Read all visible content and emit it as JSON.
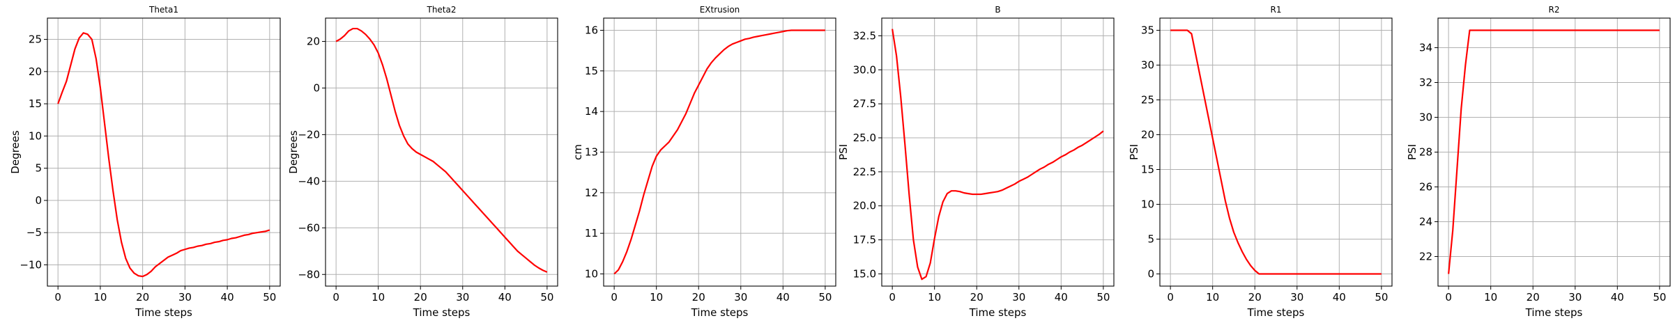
{
  "chart_data": [
    {
      "type": "line",
      "title": "Theta1",
      "xlabel": "Time steps",
      "ylabel": "Degrees",
      "xlim": [
        -2.5,
        52.5
      ],
      "ylim": [
        -13.3,
        28.3
      ],
      "xticks": [
        0,
        10,
        20,
        30,
        40,
        50
      ],
      "yticks": [
        -10,
        -5,
        0,
        5,
        10,
        15,
        20,
        25
      ],
      "grid": true,
      "line_color": "#ff0000",
      "series": [
        {
          "x": [
            0,
            1,
            2,
            3,
            4,
            5,
            6,
            7,
            8,
            9,
            10,
            11,
            12,
            13,
            14,
            15,
            16,
            17,
            18,
            19,
            20,
            21,
            22,
            23,
            24,
            25,
            26,
            27,
            28,
            29,
            30,
            31,
            32,
            33,
            34,
            35,
            36,
            37,
            38,
            39,
            40,
            41,
            42,
            43,
            44,
            45,
            46,
            47,
            48,
            49,
            50
          ],
          "values": [
            15,
            16.8,
            18.5,
            21,
            23.5,
            25.2,
            26,
            25.8,
            25,
            22,
            17.5,
            12,
            6.5,
            1.5,
            -3,
            -6.5,
            -9,
            -10.5,
            -11.3,
            -11.7,
            -11.8,
            -11.5,
            -11,
            -10.3,
            -9.8,
            -9.3,
            -8.8,
            -8.5,
            -8.2,
            -7.8,
            -7.6,
            -7.4,
            -7.3,
            -7.1,
            -7,
            -6.8,
            -6.7,
            -6.5,
            -6.4,
            -6.2,
            -6.1,
            -5.9,
            -5.8,
            -5.6,
            -5.4,
            -5.3,
            -5.1,
            -5,
            -4.9,
            -4.8,
            -4.6
          ]
        }
      ]
    },
    {
      "type": "line",
      "title": "Theta2",
      "xlabel": "Time steps",
      "ylabel": "Degrees",
      "xlim": [
        -2.5,
        52.5
      ],
      "ylim": [
        -85,
        30
      ],
      "xticks": [
        0,
        10,
        20,
        30,
        40,
        50
      ],
      "yticks": [
        -80,
        -60,
        -40,
        -20,
        0,
        20
      ],
      "grid": true,
      "line_color": "#ff0000",
      "series": [
        {
          "x": [
            0,
            1,
            2,
            3,
            4,
            5,
            6,
            7,
            8,
            9,
            10,
            11,
            12,
            13,
            14,
            15,
            16,
            17,
            18,
            19,
            20,
            21,
            22,
            23,
            24,
            25,
            26,
            27,
            28,
            29,
            30,
            31,
            32,
            33,
            34,
            35,
            36,
            37,
            38,
            39,
            40,
            41,
            42,
            43,
            44,
            45,
            46,
            47,
            48,
            49,
            50
          ],
          "values": [
            20,
            21,
            22.5,
            24.5,
            25.5,
            25.5,
            24.5,
            23,
            21,
            18.5,
            15,
            10,
            4,
            -3,
            -10,
            -16,
            -20.5,
            -24,
            -26,
            -27.5,
            -28.5,
            -29.5,
            -30.5,
            -31.5,
            -33,
            -34.5,
            -36,
            -38,
            -40,
            -42,
            -44,
            -46,
            -48,
            -50,
            -52,
            -54,
            -56,
            -58,
            -60,
            -62,
            -64,
            -66,
            -68,
            -70,
            -71.5,
            -73,
            -74.5,
            -76,
            -77.2,
            -78.2,
            -79
          ]
        }
      ]
    },
    {
      "type": "line",
      "title": "EXtrusion",
      "xlabel": "Time steps",
      "ylabel": "cm",
      "xlim": [
        -2.5,
        52.5
      ],
      "ylim": [
        9.7,
        16.3
      ],
      "xticks": [
        0,
        10,
        20,
        30,
        40,
        50
      ],
      "yticks": [
        10,
        11,
        12,
        13,
        14,
        15,
        16
      ],
      "grid": true,
      "line_color": "#ff0000",
      "series": [
        {
          "x": [
            0,
            1,
            2,
            3,
            4,
            5,
            6,
            7,
            8,
            9,
            10,
            11,
            12,
            13,
            14,
            15,
            16,
            17,
            18,
            19,
            20,
            21,
            22,
            23,
            24,
            25,
            26,
            27,
            28,
            29,
            30,
            31,
            32,
            33,
            34,
            35,
            36,
            37,
            38,
            39,
            40,
            41,
            42,
            43,
            44,
            45,
            46,
            47,
            48,
            49,
            50
          ],
          "values": [
            10,
            10.1,
            10.3,
            10.55,
            10.85,
            11.2,
            11.55,
            11.95,
            12.3,
            12.65,
            12.9,
            13.05,
            13.15,
            13.25,
            13.4,
            13.55,
            13.75,
            13.95,
            14.2,
            14.45,
            14.65,
            14.85,
            15.05,
            15.2,
            15.32,
            15.42,
            15.52,
            15.6,
            15.66,
            15.7,
            15.74,
            15.78,
            15.8,
            15.83,
            15.85,
            15.87,
            15.89,
            15.91,
            15.93,
            15.95,
            15.97,
            15.99,
            16,
            16,
            16,
            16,
            16,
            16,
            16,
            16,
            16
          ]
        }
      ]
    },
    {
      "type": "line",
      "title": "B",
      "xlabel": "Time steps",
      "ylabel": "PSI",
      "xlim": [
        -2.5,
        52.5
      ],
      "ylim": [
        14.1,
        33.8
      ],
      "xticks": [
        0,
        10,
        20,
        30,
        40,
        50
      ],
      "yticks": [
        15.0,
        17.5,
        20.0,
        22.5,
        25.0,
        27.5,
        30.0,
        32.5
      ],
      "grid": true,
      "line_color": "#ff0000",
      "series": [
        {
          "x": [
            0,
            1,
            2,
            3,
            4,
            5,
            6,
            7,
            8,
            9,
            10,
            11,
            12,
            13,
            14,
            15,
            16,
            17,
            18,
            19,
            20,
            21,
            22,
            23,
            24,
            25,
            26,
            27,
            28,
            29,
            30,
            31,
            32,
            33,
            34,
            35,
            36,
            37,
            38,
            39,
            40,
            41,
            42,
            43,
            44,
            45,
            46,
            47,
            48,
            49,
            50
          ],
          "values": [
            33,
            31,
            28,
            24.5,
            20.8,
            17.5,
            15.5,
            14.6,
            14.8,
            15.8,
            17.6,
            19.2,
            20.3,
            20.9,
            21.1,
            21.1,
            21.05,
            20.95,
            20.9,
            20.85,
            20.85,
            20.85,
            20.9,
            20.95,
            21,
            21.05,
            21.15,
            21.3,
            21.45,
            21.6,
            21.8,
            21.95,
            22.1,
            22.3,
            22.5,
            22.7,
            22.85,
            23.05,
            23.2,
            23.4,
            23.6,
            23.75,
            23.95,
            24.1,
            24.3,
            24.45,
            24.65,
            24.85,
            25.05,
            25.25,
            25.5
          ]
        }
      ]
    },
    {
      "type": "line",
      "title": "R1",
      "xlabel": "Time steps",
      "ylabel": "PSI",
      "xlim": [
        -2.5,
        52.5
      ],
      "ylim": [
        -1.75,
        36.75
      ],
      "xticks": [
        0,
        10,
        20,
        30,
        40,
        50
      ],
      "yticks": [
        0,
        5,
        10,
        15,
        20,
        25,
        30,
        35
      ],
      "grid": true,
      "line_color": "#ff0000",
      "series": [
        {
          "x": [
            0,
            1,
            2,
            3,
            4,
            5,
            6,
            7,
            8,
            9,
            10,
            11,
            12,
            13,
            14,
            15,
            16,
            17,
            18,
            19,
            20,
            21,
            22,
            23,
            24,
            25,
            26,
            27,
            28,
            29,
            30,
            31,
            32,
            33,
            34,
            35,
            36,
            37,
            38,
            39,
            40,
            41,
            42,
            43,
            44,
            45,
            46,
            47,
            48,
            49,
            50
          ],
          "values": [
            35,
            35,
            35,
            35,
            35,
            34.5,
            31.5,
            28.5,
            25.5,
            22.5,
            19.5,
            16.5,
            13.5,
            10.5,
            8,
            6,
            4.5,
            3.2,
            2.1,
            1.2,
            0.5,
            0,
            0,
            0,
            0,
            0,
            0,
            0,
            0,
            0,
            0,
            0,
            0,
            0,
            0,
            0,
            0,
            0,
            0,
            0,
            0,
            0,
            0,
            0,
            0,
            0,
            0,
            0,
            0,
            0,
            0
          ]
        }
      ]
    },
    {
      "type": "line",
      "title": "R2",
      "xlabel": "Time steps",
      "ylabel": "PSI",
      "xlim": [
        -2.5,
        52.5
      ],
      "ylim": [
        20.3,
        35.7
      ],
      "xticks": [
        0,
        10,
        20,
        30,
        40,
        50
      ],
      "yticks": [
        22,
        24,
        26,
        28,
        30,
        32,
        34
      ],
      "grid": true,
      "line_color": "#ff0000",
      "series": [
        {
          "x": [
            0,
            1,
            2,
            3,
            4,
            5,
            6,
            7,
            8,
            9,
            10,
            11,
            12,
            13,
            14,
            15,
            16,
            17,
            18,
            19,
            20,
            21,
            22,
            23,
            24,
            25,
            26,
            27,
            28,
            29,
            30,
            31,
            32,
            33,
            34,
            35,
            36,
            37,
            38,
            39,
            40,
            41,
            42,
            43,
            44,
            45,
            46,
            47,
            48,
            49,
            50
          ],
          "values": [
            21,
            23.5,
            27,
            30.5,
            33,
            35,
            35,
            35,
            35,
            35,
            35,
            35,
            35,
            35,
            35,
            35,
            35,
            35,
            35,
            35,
            35,
            35,
            35,
            35,
            35,
            35,
            35,
            35,
            35,
            35,
            35,
            35,
            35,
            35,
            35,
            35,
            35,
            35,
            35,
            35,
            35,
            35,
            35,
            35,
            35,
            35,
            35,
            35,
            35,
            35,
            35
          ]
        }
      ]
    }
  ]
}
